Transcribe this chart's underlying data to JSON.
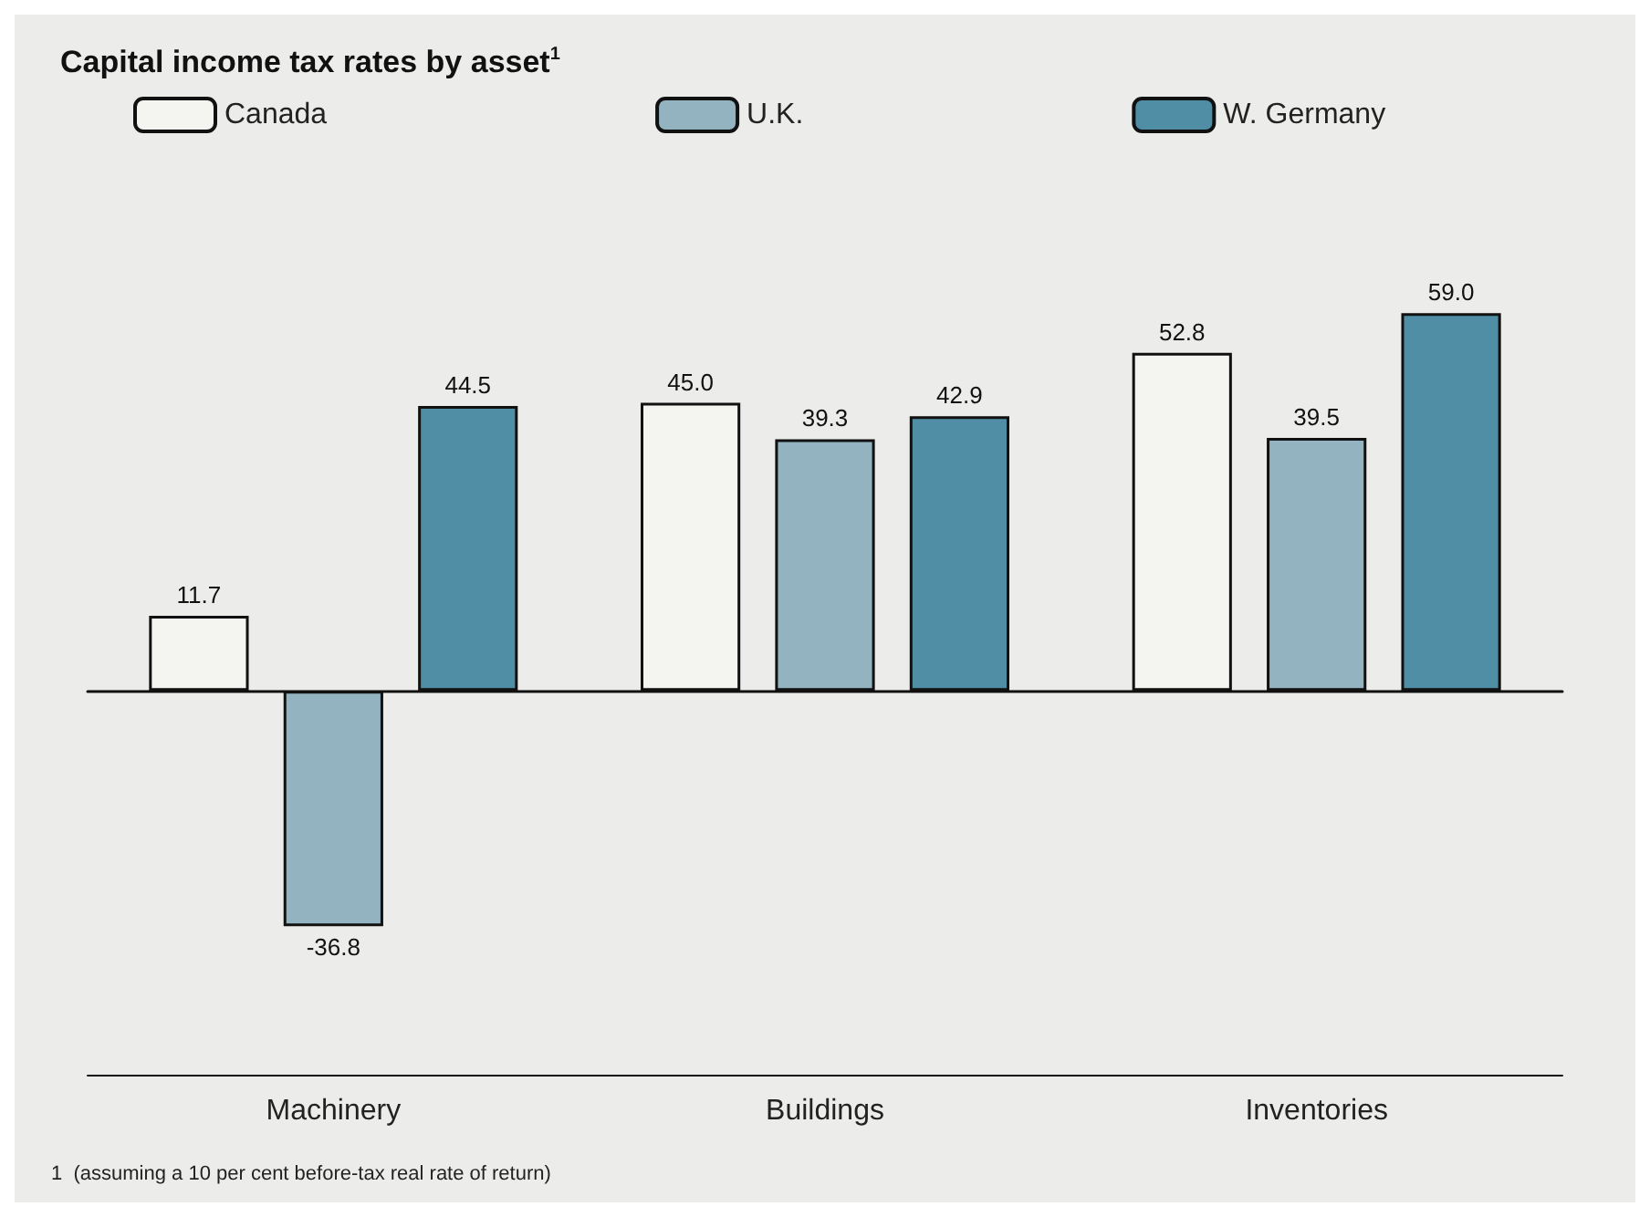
{
  "chart_data": {
    "type": "bar",
    "title": "Capital income tax rates by asset$^{1}$",
    "categories": [
      "Machinery",
      "Buildings",
      "Inventories"
    ],
    "series": [
      {
        "name": "Canada",
        "color": "#f4f4f0",
        "values": [
          11.7,
          45.0,
          52.8
        ],
        "value_labels": [
          "11.7",
          "45.0",
          "52.8"
        ]
      },
      {
        "name": "U.K.",
        "color": "#93b3c0",
        "values": [
          -36.8,
          39.3,
          39.5
        ],
        "value_labels": [
          "-36.8",
          "39.3",
          "39.5"
        ]
      },
      {
        "name": "W. Germany",
        "color": "#4f8ea5",
        "values": [
          44.5,
          42.9,
          59.0
        ],
        "value_labels": [
          "44.5",
          "42.9",
          "59.0"
        ]
      }
    ],
    "legend": "top left",
    "grid": false,
    "tick_labels": "x",
    "annotations": [
      "1  (assuming a 10 per cent before-tax real rate of return)"
    ]
  }
}
